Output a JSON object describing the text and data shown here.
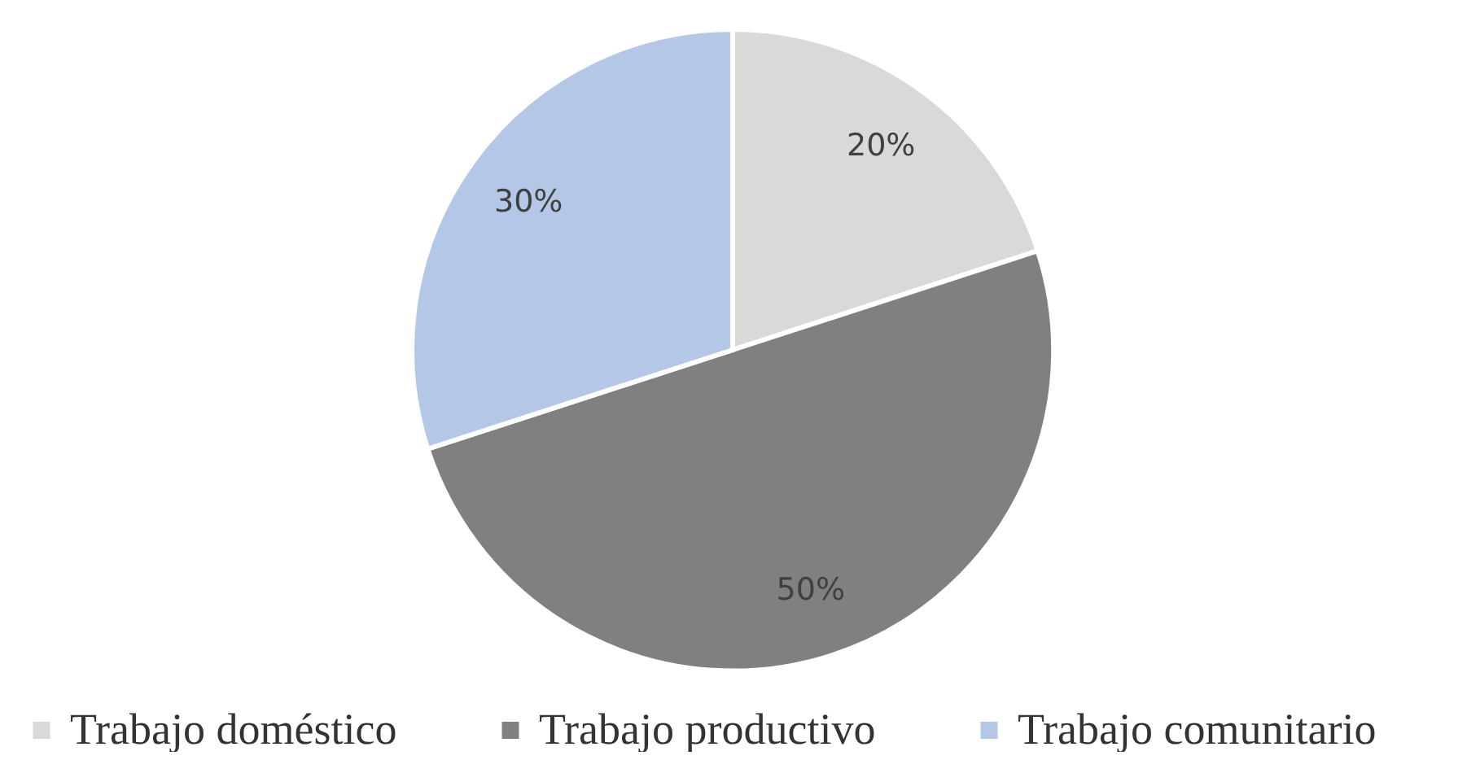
{
  "chart_data": {
    "type": "pie",
    "categories": [
      "Trabajo doméstico",
      "Trabajo productivo",
      "Trabajo comunitario"
    ],
    "values": [
      20,
      50,
      30
    ],
    "colors": [
      "#d9d9d9",
      "#808080",
      "#b4c7e7"
    ],
    "value_labels": [
      "20%",
      "50%",
      "30%"
    ],
    "legend": "bottom"
  }
}
